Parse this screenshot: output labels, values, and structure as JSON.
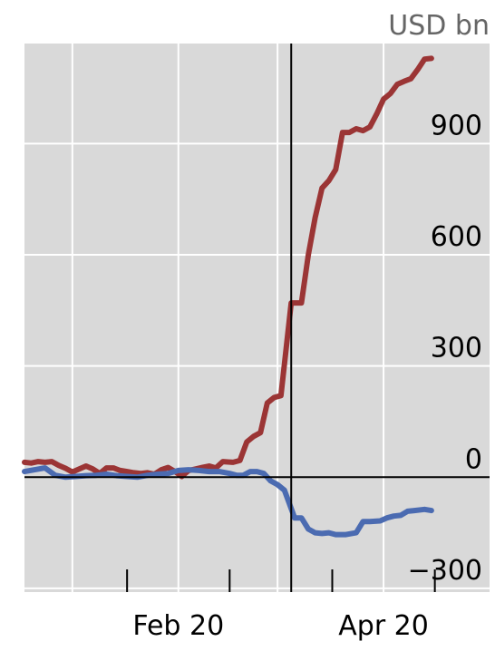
{
  "chart_data": {
    "type": "line",
    "unit_label": "USD bn",
    "ylim": [
      -310,
      1170
    ],
    "y_ticks": [
      {
        "value": 900,
        "label": "900"
      },
      {
        "value": 600,
        "label": "600"
      },
      {
        "value": 300,
        "label": "300"
      },
      {
        "value": 0,
        "label": "0"
      },
      {
        "value": -300,
        "label": "−300"
      }
    ],
    "x_axis": {
      "start": "2020-01-01",
      "end": "2020-05-16",
      "gridlines": [
        "2020-01-15",
        "2020-02-15",
        "2020-03-15",
        "2020-04-15"
      ],
      "ticks": [
        "2020-01-31",
        "2020-03-01",
        "2020-03-31",
        "2020-04-30"
      ],
      "tick_labels": [
        {
          "date": "2020-02-15",
          "label": "Feb 20"
        },
        {
          "date": "2020-04-15",
          "label": "Apr 20"
        }
      ],
      "marker_line": "2020-03-19"
    },
    "grid": true,
    "colors": {
      "plot_background": "#d9d9d9",
      "grid": "#ffffff",
      "series_red": "#9b3535",
      "series_blue": "#4b6bb1",
      "axis": "#000000",
      "unit_label": "#666666"
    },
    "series": [
      {
        "color": "#9b3535",
        "points": [
          [
            "2020-01-01",
            40
          ],
          [
            "2020-01-03",
            38
          ],
          [
            "2020-01-05",
            42
          ],
          [
            "2020-01-07",
            40
          ],
          [
            "2020-01-09",
            42
          ],
          [
            "2020-01-11",
            32
          ],
          [
            "2020-01-13",
            24
          ],
          [
            "2020-01-15",
            14
          ],
          [
            "2020-01-17",
            22
          ],
          [
            "2020-01-19",
            30
          ],
          [
            "2020-01-21",
            22
          ],
          [
            "2020-01-23",
            10
          ],
          [
            "2020-01-25",
            25
          ],
          [
            "2020-01-27",
            25
          ],
          [
            "2020-01-29",
            18
          ],
          [
            "2020-01-31",
            15
          ],
          [
            "2020-02-02",
            12
          ],
          [
            "2020-02-04",
            10
          ],
          [
            "2020-02-06",
            12
          ],
          [
            "2020-02-08",
            8
          ],
          [
            "2020-02-10",
            20
          ],
          [
            "2020-02-12",
            26
          ],
          [
            "2020-02-14",
            15
          ],
          [
            "2020-02-16",
            2
          ],
          [
            "2020-02-18",
            18
          ],
          [
            "2020-02-20",
            22
          ],
          [
            "2020-02-22",
            26
          ],
          [
            "2020-02-24",
            30
          ],
          [
            "2020-02-26",
            25
          ],
          [
            "2020-02-28",
            42
          ],
          [
            "2020-03-02",
            40
          ],
          [
            "2020-03-04",
            45
          ],
          [
            "2020-03-06",
            95
          ],
          [
            "2020-03-08",
            110
          ],
          [
            "2020-03-10",
            120
          ],
          [
            "2020-03-12",
            200
          ],
          [
            "2020-03-14",
            215
          ],
          [
            "2020-03-16",
            220
          ],
          [
            "2020-03-19",
            470
          ],
          [
            "2020-03-20",
            470
          ],
          [
            "2020-03-22",
            470
          ],
          [
            "2020-03-24",
            600
          ],
          [
            "2020-03-26",
            700
          ],
          [
            "2020-03-28",
            780
          ],
          [
            "2020-03-30",
            800
          ],
          [
            "2020-04-01",
            830
          ],
          [
            "2020-04-03",
            930
          ],
          [
            "2020-04-05",
            930
          ],
          [
            "2020-04-07",
            940
          ],
          [
            "2020-04-09",
            935
          ],
          [
            "2020-04-11",
            945
          ],
          [
            "2020-04-13",
            980
          ],
          [
            "2020-04-15",
            1020
          ],
          [
            "2020-04-17",
            1035
          ],
          [
            "2020-04-19",
            1060
          ],
          [
            "2020-04-21",
            1068
          ],
          [
            "2020-04-23",
            1075
          ],
          [
            "2020-04-25",
            1100
          ],
          [
            "2020-04-27",
            1128
          ],
          [
            "2020-04-29",
            1130
          ]
        ]
      },
      {
        "color": "#4b6bb1",
        "points": [
          [
            "2020-01-01",
            15
          ],
          [
            "2020-01-04",
            20
          ],
          [
            "2020-01-07",
            25
          ],
          [
            "2020-01-10",
            5
          ],
          [
            "2020-01-13",
            0
          ],
          [
            "2020-01-16",
            2
          ],
          [
            "2020-01-19",
            4
          ],
          [
            "2020-01-22",
            5
          ],
          [
            "2020-01-25",
            8
          ],
          [
            "2020-01-28",
            4
          ],
          [
            "2020-01-31",
            2
          ],
          [
            "2020-02-03",
            0
          ],
          [
            "2020-02-06",
            5
          ],
          [
            "2020-02-09",
            8
          ],
          [
            "2020-02-12",
            10
          ],
          [
            "2020-02-15",
            18
          ],
          [
            "2020-02-18",
            20
          ],
          [
            "2020-02-21",
            18
          ],
          [
            "2020-02-24",
            15
          ],
          [
            "2020-02-27",
            15
          ],
          [
            "2020-03-01",
            10
          ],
          [
            "2020-03-03",
            5
          ],
          [
            "2020-03-05",
            5
          ],
          [
            "2020-03-07",
            15
          ],
          [
            "2020-03-09",
            15
          ],
          [
            "2020-03-11",
            10
          ],
          [
            "2020-03-13",
            -10
          ],
          [
            "2020-03-15",
            -20
          ],
          [
            "2020-03-17",
            -35
          ],
          [
            "2020-03-20",
            -110
          ],
          [
            "2020-03-22",
            -110
          ],
          [
            "2020-03-24",
            -140
          ],
          [
            "2020-03-26",
            -150
          ],
          [
            "2020-03-28",
            -152
          ],
          [
            "2020-03-30",
            -150
          ],
          [
            "2020-04-01",
            -155
          ],
          [
            "2020-04-04",
            -155
          ],
          [
            "2020-04-07",
            -150
          ],
          [
            "2020-04-09",
            -120
          ],
          [
            "2020-04-11",
            -120
          ],
          [
            "2020-04-14",
            -118
          ],
          [
            "2020-04-16",
            -110
          ],
          [
            "2020-04-18",
            -105
          ],
          [
            "2020-04-20",
            -103
          ],
          [
            "2020-04-22",
            -92
          ],
          [
            "2020-04-24",
            -90
          ],
          [
            "2020-04-27",
            -87
          ],
          [
            "2020-04-29",
            -90
          ]
        ]
      }
    ]
  }
}
